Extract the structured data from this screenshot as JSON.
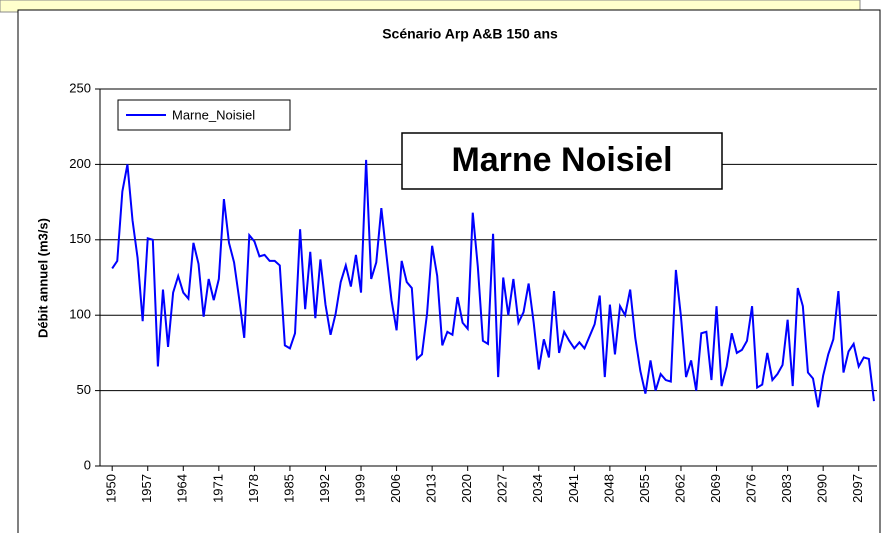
{
  "chart_data": {
    "type": "line",
    "title": "Scénario Arp A&B 150 ans",
    "y_label": "Débit annuel (m3/s)",
    "annotation": "Marne Noisiel",
    "x": [
      1950,
      1951,
      1952,
      1953,
      1954,
      1955,
      1956,
      1957,
      1958,
      1959,
      1960,
      1961,
      1962,
      1963,
      1964,
      1965,
      1966,
      1967,
      1968,
      1969,
      1970,
      1971,
      1972,
      1973,
      1974,
      1975,
      1976,
      1977,
      1978,
      1979,
      1980,
      1981,
      1982,
      1983,
      1984,
      1985,
      1986,
      1987,
      1988,
      1989,
      1990,
      1991,
      1992,
      1993,
      1994,
      1995,
      1996,
      1997,
      1998,
      1999,
      2000,
      2001,
      2002,
      2003,
      2004,
      2005,
      2006,
      2007,
      2008,
      2009,
      2010,
      2011,
      2012,
      2013,
      2014,
      2015,
      2016,
      2017,
      2018,
      2019,
      2020,
      2021,
      2022,
      2023,
      2024,
      2025,
      2026,
      2027,
      2028,
      2029,
      2030,
      2031,
      2032,
      2033,
      2034,
      2035,
      2036,
      2037,
      2038,
      2039,
      2040,
      2041,
      2042,
      2043,
      2044,
      2045,
      2046,
      2047,
      2048,
      2049,
      2050,
      2051,
      2052,
      2053,
      2054,
      2055,
      2056,
      2057,
      2058,
      2059,
      2060,
      2061,
      2062,
      2063,
      2064,
      2065,
      2066,
      2067,
      2068,
      2069,
      2070,
      2071,
      2072,
      2073,
      2074,
      2075,
      2076,
      2077,
      2078,
      2079,
      2080,
      2081,
      2082,
      2083,
      2084,
      2085,
      2086,
      2087,
      2088,
      2089,
      2090,
      2091,
      2092,
      2093,
      2094,
      2095,
      2096,
      2097,
      2098,
      2099,
      2100
    ],
    "series": [
      {
        "name": "Marne_Noisiel",
        "color": "#0000ff",
        "values": [
          131,
          136,
          182,
          200,
          163,
          138,
          96,
          151,
          150,
          66,
          117,
          79,
          115,
          126,
          115,
          111,
          148,
          134,
          99,
          124,
          110,
          124,
          177,
          148,
          135,
          111,
          85,
          153,
          149,
          139,
          140,
          136,
          136,
          133,
          80,
          78,
          88,
          157,
          104,
          142,
          98,
          137,
          107,
          87,
          101,
          122,
          133,
          119,
          140,
          115,
          203,
          124,
          135,
          171,
          140,
          110,
          90,
          136,
          122,
          118,
          71,
          74,
          101,
          146,
          126,
          80,
          89,
          87,
          112,
          95,
          91,
          168,
          132,
          83,
          81,
          154,
          59,
          125,
          100,
          124,
          95,
          102,
          121,
          95,
          64,
          84,
          72,
          116,
          75,
          89,
          83,
          78,
          82,
          78,
          86,
          94,
          113,
          59,
          107,
          74,
          106,
          100,
          117,
          85,
          63,
          48,
          70,
          50,
          61,
          57,
          56,
          130,
          99,
          59,
          70,
          50,
          88,
          89,
          57,
          106,
          53,
          66,
          88,
          75,
          77,
          83,
          106,
          52,
          54,
          75,
          57,
          61,
          67,
          97,
          53,
          118,
          106,
          62,
          58,
          39,
          60,
          74,
          84,
          116,
          62,
          76,
          81,
          66,
          72,
          71,
          43
        ]
      }
    ],
    "xlim": [
      1947.6,
      2100.6
    ],
    "xticks": [
      1950,
      1957,
      1964,
      1971,
      1978,
      1985,
      1992,
      1999,
      2006,
      2013,
      2020,
      2027,
      2034,
      2041,
      2048,
      2055,
      2062,
      2069,
      2076,
      2083,
      2090,
      2097
    ],
    "ylim": [
      0,
      250
    ],
    "yticks": [
      0,
      50,
      100,
      150,
      200,
      250
    ],
    "grid": true
  }
}
